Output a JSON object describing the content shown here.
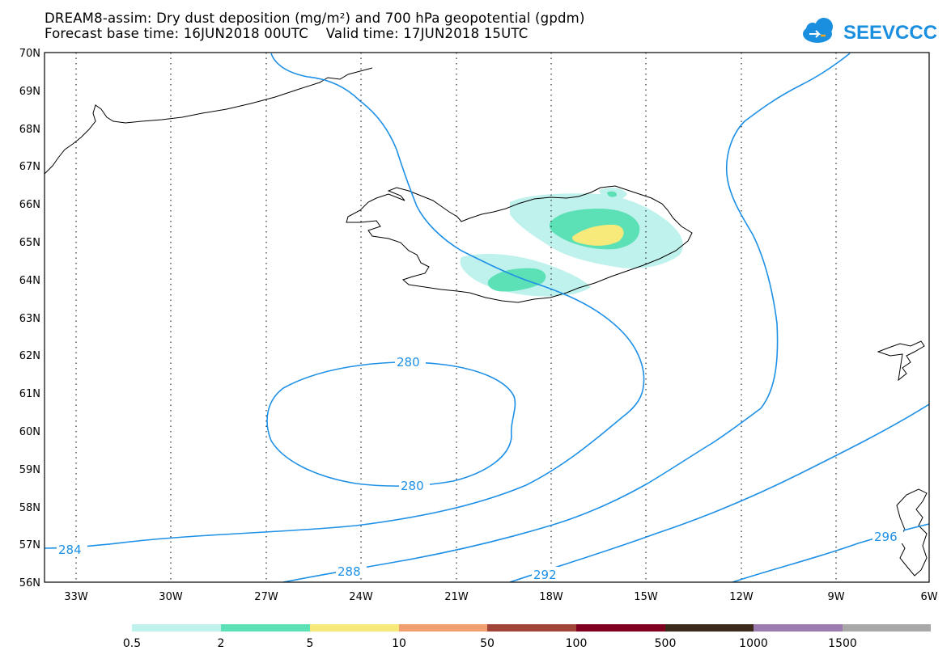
{
  "header": {
    "title_line1": "DREAM8-assim: Dry dust deposition (mg/m²) and 700 hPa geopotential (gpdm)",
    "title_line2": "Forecast base time: 16JUN2018 00UTC    Valid time: 17JUN2018 15UTC"
  },
  "logo": {
    "text": "SEEVCCC",
    "color": "#1a8fe0",
    "accent": "#f5a623"
  },
  "axes": {
    "lat_labels": [
      "70N",
      "69N",
      "68N",
      "67N",
      "66N",
      "65N",
      "64N",
      "63N",
      "62N",
      "61N",
      "60N",
      "59N",
      "58N",
      "57N",
      "56N"
    ],
    "lon_labels": [
      "33W",
      "30W",
      "27W",
      "24W",
      "21W",
      "18W",
      "15W",
      "12W",
      "9W",
      "6W"
    ],
    "lat_range": [
      56,
      70
    ],
    "lon_range": [
      -34.5,
      -6
    ],
    "grid": "dotted"
  },
  "contours": {
    "color": "#1e90e6",
    "labels": [
      "280",
      "280",
      "284",
      "288",
      "292",
      "296"
    ]
  },
  "legend": {
    "colors": [
      "#bff2ec",
      "#5ce0b5",
      "#f7e97a",
      "#f0a070",
      "#a04538",
      "#800020",
      "#3b2a1a",
      "#9b7bb0",
      "#a8a8a8"
    ],
    "labels": [
      "0.5",
      "2",
      "5",
      "10",
      "50",
      "100",
      "500",
      "1000",
      "1500"
    ]
  }
}
